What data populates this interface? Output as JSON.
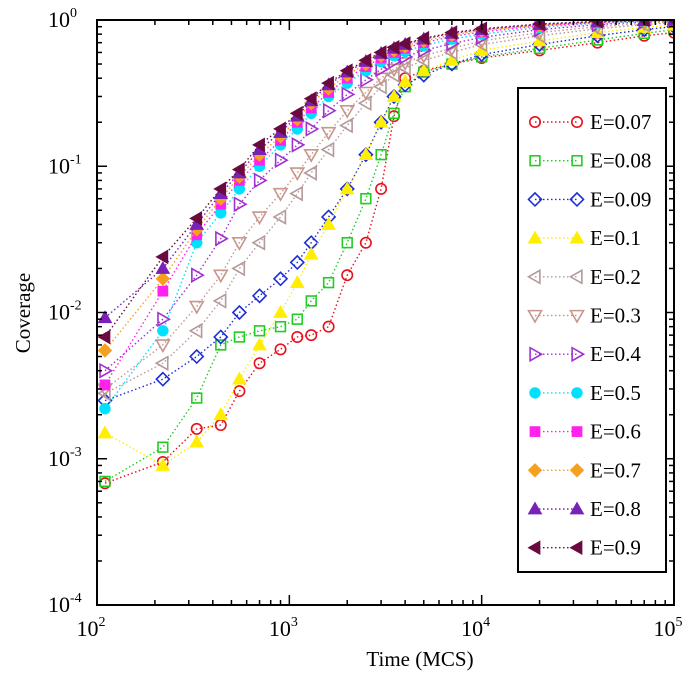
{
  "chart_data": {
    "type": "scatter",
    "xlabel": "Time (MCS)",
    "ylabel": "Coverage",
    "xscale": "log",
    "yscale": "log",
    "xlim": [
      100,
      100000
    ],
    "ylim": [
      0.0001,
      1
    ],
    "x_tick_labels": [
      {
        "base": "10",
        "exp": "2",
        "value": 100
      },
      {
        "base": "10",
        "exp": "3",
        "value": 1000
      },
      {
        "base": "10",
        "exp": "4",
        "value": 10000
      },
      {
        "base": "10",
        "exp": "5",
        "value": 100000
      }
    ],
    "y_tick_labels": [
      {
        "base": "10",
        "exp": "0",
        "value": 1
      },
      {
        "base": "10",
        "exp": "-1",
        "value": 0.1
      },
      {
        "base": "10",
        "exp": "-2",
        "value": 0.01
      },
      {
        "base": "10",
        "exp": "-3",
        "value": 0.001
      },
      {
        "base": "10",
        "exp": "-4",
        "value": 0.0001
      }
    ],
    "legend_position": "right",
    "grid": false,
    "series": [
      {
        "name": "E=0.07",
        "color": "#e8101c",
        "marker": "circle-open",
        "points": [
          [
            110,
            0.00068
          ],
          [
            220,
            0.00095
          ],
          [
            330,
            0.0016
          ],
          [
            440,
            0.0017
          ],
          [
            550,
            0.0029
          ],
          [
            700,
            0.0045
          ],
          [
            900,
            0.0056
          ],
          [
            1100,
            0.0068
          ],
          [
            1300,
            0.007
          ],
          [
            1600,
            0.008
          ],
          [
            2000,
            0.018
          ],
          [
            2500,
            0.03
          ],
          [
            3000,
            0.07
          ],
          [
            3500,
            0.22
          ],
          [
            4000,
            0.4
          ],
          [
            5000,
            0.45
          ],
          [
            7000,
            0.5
          ],
          [
            10000,
            0.55
          ],
          [
            20000,
            0.62
          ],
          [
            40000,
            0.7
          ],
          [
            70000,
            0.78
          ],
          [
            100000,
            0.82
          ]
        ]
      },
      {
        "name": "E=0.08",
        "color": "#22cc22",
        "marker": "square-open",
        "points": [
          [
            110,
            0.0007
          ],
          [
            220,
            0.0012
          ],
          [
            330,
            0.0026
          ],
          [
            440,
            0.006
          ],
          [
            550,
            0.0068
          ],
          [
            700,
            0.0075
          ],
          [
            900,
            0.008
          ],
          [
            1100,
            0.009
          ],
          [
            1300,
            0.012
          ],
          [
            1600,
            0.016
          ],
          [
            2000,
            0.03
          ],
          [
            2500,
            0.06
          ],
          [
            3000,
            0.12
          ],
          [
            3500,
            0.23
          ],
          [
            4000,
            0.35
          ],
          [
            5000,
            0.44
          ],
          [
            7000,
            0.5
          ],
          [
            10000,
            0.56
          ],
          [
            20000,
            0.64
          ],
          [
            40000,
            0.73
          ],
          [
            70000,
            0.81
          ],
          [
            100000,
            0.86
          ]
        ]
      },
      {
        "name": "E=0.09",
        "color": "#1e2ed6",
        "marker": "diamond-open",
        "points": [
          [
            110,
            0.0025
          ],
          [
            220,
            0.0035
          ],
          [
            330,
            0.005
          ],
          [
            440,
            0.0068
          ],
          [
            550,
            0.01
          ],
          [
            700,
            0.013
          ],
          [
            900,
            0.017
          ],
          [
            1100,
            0.022
          ],
          [
            1300,
            0.03
          ],
          [
            1600,
            0.045
          ],
          [
            2000,
            0.07
          ],
          [
            2500,
            0.12
          ],
          [
            3000,
            0.2
          ],
          [
            3500,
            0.3
          ],
          [
            4000,
            0.36
          ],
          [
            5000,
            0.42
          ],
          [
            7000,
            0.5
          ],
          [
            10000,
            0.58
          ],
          [
            20000,
            0.68
          ],
          [
            40000,
            0.78
          ],
          [
            70000,
            0.86
          ],
          [
            100000,
            0.9
          ]
        ]
      },
      {
        "name": "E=0.1",
        "color": "#ffee00",
        "marker": "triangle-up",
        "points": [
          [
            110,
            0.0015
          ],
          [
            220,
            0.0009
          ],
          [
            330,
            0.0013
          ],
          [
            440,
            0.002
          ],
          [
            550,
            0.0035
          ],
          [
            700,
            0.006
          ],
          [
            900,
            0.01
          ],
          [
            1100,
            0.016
          ],
          [
            1300,
            0.025
          ],
          [
            1600,
            0.04
          ],
          [
            2000,
            0.07
          ],
          [
            2500,
            0.12
          ],
          [
            3000,
            0.2
          ],
          [
            3500,
            0.3
          ],
          [
            4000,
            0.38
          ],
          [
            5000,
            0.45
          ],
          [
            7000,
            0.53
          ],
          [
            10000,
            0.62
          ],
          [
            20000,
            0.72
          ],
          [
            40000,
            0.82
          ],
          [
            70000,
            0.89
          ],
          [
            100000,
            0.92
          ]
        ]
      },
      {
        "name": "E=0.2",
        "color": "#b49a9a",
        "marker": "triangle-left-open",
        "points": [
          [
            110,
            0.0028
          ],
          [
            220,
            0.0045
          ],
          [
            330,
            0.0075
          ],
          [
            440,
            0.012
          ],
          [
            550,
            0.02
          ],
          [
            700,
            0.03
          ],
          [
            900,
            0.045
          ],
          [
            1100,
            0.065
          ],
          [
            1300,
            0.09
          ],
          [
            1600,
            0.13
          ],
          [
            2000,
            0.19
          ],
          [
            2500,
            0.27
          ],
          [
            3000,
            0.35
          ],
          [
            3500,
            0.42
          ],
          [
            4000,
            0.47
          ],
          [
            5000,
            0.53
          ],
          [
            7000,
            0.6
          ],
          [
            10000,
            0.68
          ],
          [
            20000,
            0.78
          ],
          [
            40000,
            0.87
          ],
          [
            70000,
            0.93
          ],
          [
            100000,
            0.96
          ]
        ]
      },
      {
        "name": "E=0.3",
        "color": "#c8968c",
        "marker": "triangle-down-open",
        "points": [
          [
            110,
            0.003
          ],
          [
            220,
            0.006
          ],
          [
            330,
            0.011
          ],
          [
            440,
            0.018
          ],
          [
            550,
            0.03
          ],
          [
            700,
            0.045
          ],
          [
            900,
            0.065
          ],
          [
            1100,
            0.09
          ],
          [
            1300,
            0.12
          ],
          [
            1600,
            0.17
          ],
          [
            2000,
            0.24
          ],
          [
            2500,
            0.32
          ],
          [
            3000,
            0.4
          ],
          [
            3500,
            0.46
          ],
          [
            4000,
            0.51
          ],
          [
            5000,
            0.57
          ],
          [
            7000,
            0.64
          ],
          [
            10000,
            0.72
          ],
          [
            20000,
            0.82
          ],
          [
            40000,
            0.9
          ],
          [
            70000,
            0.95
          ],
          [
            100000,
            0.97
          ]
        ]
      },
      {
        "name": "E=0.4",
        "color": "#a030d0",
        "marker": "triangle-right-open",
        "points": [
          [
            110,
            0.004
          ],
          [
            220,
            0.009
          ],
          [
            330,
            0.018
          ],
          [
            440,
            0.032
          ],
          [
            550,
            0.055
          ],
          [
            700,
            0.08
          ],
          [
            900,
            0.11
          ],
          [
            1100,
            0.14
          ],
          [
            1300,
            0.18
          ],
          [
            1600,
            0.24
          ],
          [
            2000,
            0.31
          ],
          [
            2500,
            0.39
          ],
          [
            3000,
            0.46
          ],
          [
            3500,
            0.52
          ],
          [
            4000,
            0.56
          ],
          [
            5000,
            0.62
          ],
          [
            7000,
            0.69
          ],
          [
            10000,
            0.76
          ],
          [
            20000,
            0.86
          ],
          [
            40000,
            0.93
          ],
          [
            70000,
            0.97
          ],
          [
            100000,
            0.99
          ]
        ]
      },
      {
        "name": "E=0.5",
        "color": "#00e0ff",
        "marker": "circle",
        "points": [
          [
            110,
            0.0022
          ],
          [
            220,
            0.0075
          ],
          [
            330,
            0.03
          ],
          [
            440,
            0.048
          ],
          [
            550,
            0.07
          ],
          [
            700,
            0.1
          ],
          [
            900,
            0.14
          ],
          [
            1100,
            0.18
          ],
          [
            1300,
            0.23
          ],
          [
            1600,
            0.3
          ],
          [
            2000,
            0.37
          ],
          [
            2500,
            0.45
          ],
          [
            3000,
            0.52
          ],
          [
            3500,
            0.57
          ],
          [
            4000,
            0.61
          ],
          [
            5000,
            0.67
          ],
          [
            7000,
            0.74
          ],
          [
            10000,
            0.8
          ],
          [
            20000,
            0.89
          ],
          [
            40000,
            0.95
          ],
          [
            70000,
            0.98
          ],
          [
            100000,
            1.0
          ]
        ]
      },
      {
        "name": "E=0.6",
        "color": "#ff22ee",
        "marker": "square",
        "points": [
          [
            110,
            0.0032
          ],
          [
            220,
            0.014
          ],
          [
            330,
            0.034
          ],
          [
            440,
            0.055
          ],
          [
            550,
            0.08
          ],
          [
            700,
            0.11
          ],
          [
            900,
            0.15
          ],
          [
            1100,
            0.2
          ],
          [
            1300,
            0.25
          ],
          [
            1600,
            0.32
          ],
          [
            2000,
            0.4
          ],
          [
            2500,
            0.48
          ],
          [
            3000,
            0.55
          ],
          [
            3500,
            0.6
          ],
          [
            4000,
            0.64
          ],
          [
            5000,
            0.7
          ],
          [
            7000,
            0.77
          ],
          [
            10000,
            0.83
          ],
          [
            20000,
            0.91
          ],
          [
            40000,
            0.96
          ],
          [
            70000,
            0.99
          ],
          [
            100000,
            1.0
          ]
        ]
      },
      {
        "name": "E=0.7",
        "color": "#f5a020",
        "marker": "diamond",
        "points": [
          [
            110,
            0.0055
          ],
          [
            220,
            0.017
          ],
          [
            330,
            0.037
          ],
          [
            440,
            0.06
          ],
          [
            550,
            0.085
          ],
          [
            700,
            0.12
          ],
          [
            900,
            0.16
          ],
          [
            1100,
            0.21
          ],
          [
            1300,
            0.27
          ],
          [
            1600,
            0.34
          ],
          [
            2000,
            0.42
          ],
          [
            2500,
            0.5
          ],
          [
            3000,
            0.57
          ],
          [
            3500,
            0.62
          ],
          [
            4000,
            0.66
          ],
          [
            5000,
            0.72
          ],
          [
            7000,
            0.79
          ],
          [
            10000,
            0.85
          ],
          [
            20000,
            0.92
          ],
          [
            40000,
            0.97
          ],
          [
            70000,
            0.99
          ],
          [
            100000,
            1.0
          ]
        ]
      },
      {
        "name": "E=0.8",
        "color": "#7a22b8",
        "marker": "triangle-up",
        "points": [
          [
            110,
            0.0092
          ],
          [
            220,
            0.02
          ],
          [
            330,
            0.04
          ],
          [
            440,
            0.065
          ],
          [
            550,
            0.09
          ],
          [
            700,
            0.13
          ],
          [
            900,
            0.17
          ],
          [
            1100,
            0.22
          ],
          [
            1300,
            0.28
          ],
          [
            1600,
            0.36
          ],
          [
            2000,
            0.44
          ],
          [
            2500,
            0.52
          ],
          [
            3000,
            0.59
          ],
          [
            3500,
            0.64
          ],
          [
            4000,
            0.68
          ],
          [
            5000,
            0.74
          ],
          [
            7000,
            0.81
          ],
          [
            10000,
            0.86
          ],
          [
            20000,
            0.93
          ],
          [
            40000,
            0.97
          ],
          [
            70000,
            0.99
          ],
          [
            100000,
            1.0
          ]
        ]
      },
      {
        "name": "E=0.9",
        "color": "#6a0a40",
        "marker": "triangle-left",
        "points": [
          [
            110,
            0.0068
          ],
          [
            220,
            0.024
          ],
          [
            330,
            0.044
          ],
          [
            440,
            0.07
          ],
          [
            550,
            0.095
          ],
          [
            700,
            0.14
          ],
          [
            900,
            0.18
          ],
          [
            1100,
            0.23
          ],
          [
            1300,
            0.29
          ],
          [
            1600,
            0.37
          ],
          [
            2000,
            0.45
          ],
          [
            2500,
            0.53
          ],
          [
            3000,
            0.6
          ],
          [
            3500,
            0.65
          ],
          [
            4000,
            0.69
          ],
          [
            5000,
            0.75
          ],
          [
            7000,
            0.82
          ],
          [
            10000,
            0.87
          ],
          [
            20000,
            0.94
          ],
          [
            40000,
            0.98
          ],
          [
            70000,
            1.0
          ],
          [
            100000,
            1.0
          ]
        ]
      }
    ]
  }
}
